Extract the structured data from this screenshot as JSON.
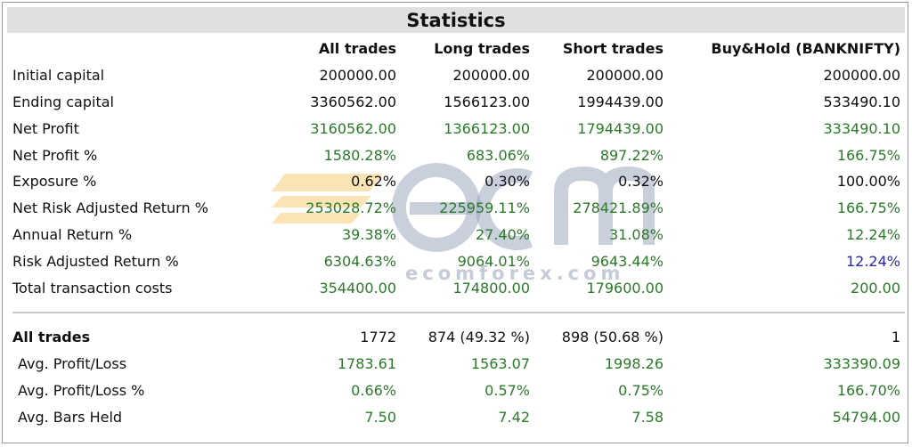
{
  "title": "Statistics",
  "columns": [
    "",
    "All trades",
    "Long trades",
    "Short trades",
    "Buy&Hold (BANKNIFTY)"
  ],
  "rows": [
    {
      "label": "Initial capital",
      "values": [
        "200000.00",
        "200000.00",
        "200000.00",
        "200000.00"
      ],
      "colors": [
        "black",
        "black",
        "black",
        "black"
      ]
    },
    {
      "label": "Ending capital",
      "values": [
        "3360562.00",
        "1566123.00",
        "1994439.00",
        "533490.10"
      ],
      "colors": [
        "black",
        "black",
        "black",
        "black"
      ]
    },
    {
      "label": "Net Profit",
      "values": [
        "3160562.00",
        "1366123.00",
        "1794439.00",
        "333490.10"
      ],
      "colors": [
        "green",
        "green",
        "green",
        "green"
      ]
    },
    {
      "label": "Net Profit %",
      "values": [
        "1580.28%",
        "683.06%",
        "897.22%",
        "166.75%"
      ],
      "colors": [
        "green",
        "green",
        "green",
        "green"
      ]
    },
    {
      "label": "Exposure %",
      "values": [
        "0.62%",
        "0.30%",
        "0.32%",
        "100.00%"
      ],
      "colors": [
        "black",
        "black",
        "black",
        "black"
      ]
    },
    {
      "label": "Net Risk Adjusted Return %",
      "values": [
        "253028.72%",
        "225959.11%",
        "278421.89%",
        "166.75%"
      ],
      "colors": [
        "green",
        "green",
        "green",
        "green"
      ]
    },
    {
      "label": "Annual Return %",
      "values": [
        "39.38%",
        "27.40%",
        "31.08%",
        "12.24%"
      ],
      "colors": [
        "green",
        "green",
        "green",
        "green"
      ]
    },
    {
      "label": "Risk Adjusted Return %",
      "values": [
        "6304.63%",
        "9064.01%",
        "9643.44%",
        "12.24%"
      ],
      "colors": [
        "green",
        "green",
        "green",
        "blue"
      ]
    },
    {
      "label": "Total transaction costs",
      "values": [
        "354400.00",
        "174800.00",
        "179600.00",
        "200.00"
      ],
      "colors": [
        "green",
        "green",
        "green",
        "green"
      ]
    }
  ],
  "trades": {
    "label": "All trades",
    "values": [
      "1772",
      "874 (49.32 %)",
      "898 (50.68 %)",
      "1"
    ],
    "rows": [
      {
        "label": "Avg. Profit/Loss",
        "values": [
          "1783.61",
          "1563.07",
          "1998.26",
          "333390.09"
        ],
        "colors": [
          "green",
          "green",
          "green",
          "green"
        ]
      },
      {
        "label": "Avg. Profit/Loss %",
        "values": [
          "0.66%",
          "0.57%",
          "0.75%",
          "166.70%"
        ],
        "colors": [
          "green",
          "green",
          "green",
          "green"
        ]
      },
      {
        "label": "Avg. Bars Held",
        "values": [
          "7.50",
          "7.42",
          "7.58",
          "54794.00"
        ],
        "colors": [
          "green",
          "green",
          "green",
          "green"
        ]
      }
    ]
  },
  "watermark": {
    "text": "ecomforex.com"
  },
  "colors": {
    "green": "#2a7a2a",
    "blue": "#2a2aa8",
    "header_bg": "#e0e0e0",
    "separator": "#c8c8c8"
  }
}
